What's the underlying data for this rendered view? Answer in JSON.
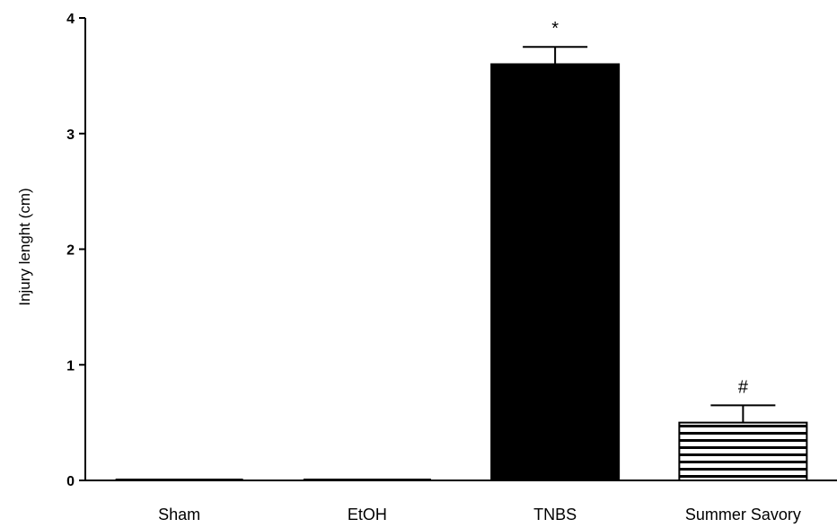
{
  "chart_data": {
    "type": "bar",
    "categories": [
      "Sham",
      "EtOH",
      "TNBS",
      "Summer Savory"
    ],
    "values": [
      0,
      0,
      3.6,
      0.5
    ],
    "errors": [
      0,
      0,
      0.15,
      0.15
    ],
    "annotations": [
      "",
      "",
      "*",
      "#"
    ],
    "fills": [
      "solid",
      "solid",
      "solid",
      "horizontal-stripes"
    ],
    "ylabel": "Injury lenght (cm)",
    "xlabel": "",
    "ylim": [
      0,
      4
    ],
    "yticks": [
      0,
      1,
      2,
      3,
      4
    ],
    "grid": false,
    "bar_color": "#000000"
  }
}
